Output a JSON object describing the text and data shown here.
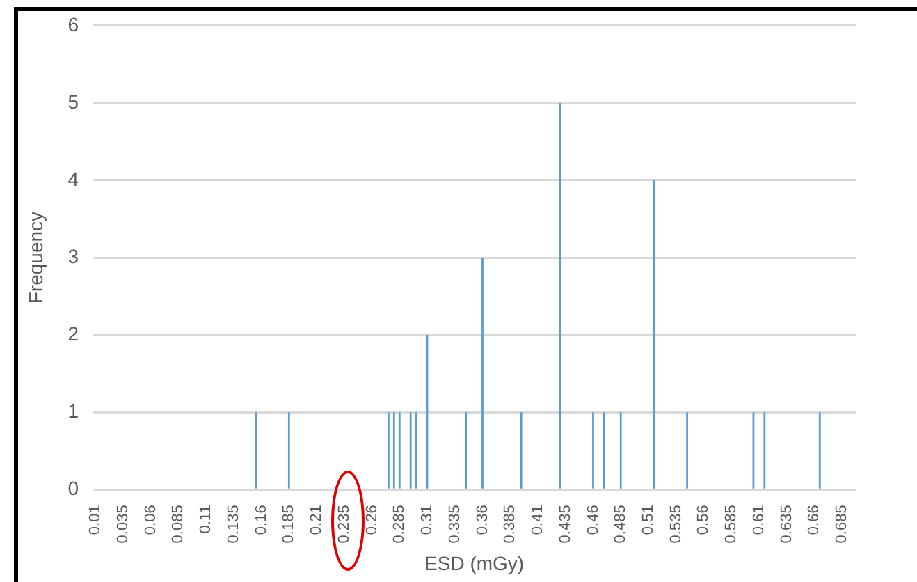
{
  "chart_data": {
    "type": "bar",
    "xlabel": "ESD (mGy)",
    "ylabel": "Frequency",
    "color": "#5b9bd5",
    "grid": "y",
    "ylim": [
      0,
      6
    ],
    "yticks": [
      0,
      1,
      2,
      3,
      4,
      5,
      6
    ],
    "categories": [
      "0.01",
      null,
      null,
      null,
      null,
      "0.035",
      null,
      null,
      null,
      null,
      "0.06",
      null,
      null,
      null,
      null,
      "0.085",
      null,
      null,
      null,
      null,
      "0.11",
      null,
      null,
      null,
      null,
      "0.135",
      null,
      null,
      null,
      null,
      "0.16",
      null,
      null,
      null,
      null,
      "0.185",
      null,
      null,
      null,
      null,
      "0.21",
      null,
      null,
      null,
      null,
      "0.235",
      null,
      null,
      null,
      null,
      "0.26",
      null,
      null,
      null,
      null,
      "0.285",
      null,
      null,
      null,
      null,
      "0.31",
      null,
      null,
      null,
      null,
      "0.335",
      null,
      null,
      null,
      null,
      "0.36",
      null,
      null,
      null,
      null,
      "0.385",
      null,
      null,
      null,
      null,
      "0.41",
      null,
      null,
      null,
      null,
      "0.435",
      null,
      null,
      null,
      null,
      "0.46",
      null,
      null,
      null,
      null,
      "0.485",
      null,
      null,
      null,
      null,
      "0.51",
      null,
      null,
      null,
      null,
      "0.535",
      null,
      null,
      null,
      null,
      "0.56",
      null,
      null,
      null,
      null,
      "0.585",
      null,
      null,
      null,
      null,
      "0.61",
      null,
      null,
      null,
      null,
      "0.635",
      null,
      null,
      null,
      null,
      "0.66",
      null,
      null,
      null,
      null,
      "0.685",
      null,
      null
    ],
    "values": [
      0,
      0,
      0,
      0,
      0,
      0,
      0,
      0,
      0,
      0,
      0,
      0,
      0,
      0,
      0,
      0,
      0,
      0,
      0,
      0,
      0,
      0,
      0,
      0,
      0,
      0,
      0,
      0,
      0,
      1,
      0,
      0,
      0,
      0,
      0,
      1,
      0,
      0,
      0,
      0,
      0,
      0,
      0,
      0,
      0,
      0,
      0,
      0,
      0,
      0,
      0,
      0,
      0,
      1,
      1,
      1,
      0,
      1,
      1,
      0,
      2,
      0,
      0,
      0,
      0,
      0,
      0,
      1,
      0,
      0,
      3,
      0,
      0,
      0,
      0,
      0,
      0,
      1,
      0,
      0,
      0,
      0,
      0,
      0,
      5,
      0,
      0,
      0,
      0,
      0,
      1,
      0,
      1,
      0,
      0,
      1,
      0,
      0,
      0,
      0,
      0,
      4,
      0,
      0,
      0,
      0,
      0,
      1,
      0,
      0,
      0,
      0,
      0,
      0,
      0,
      0,
      0,
      0,
      0,
      1,
      0,
      1,
      0,
      0,
      0,
      0,
      0,
      0,
      0,
      0,
      0,
      1,
      0,
      0,
      0,
      0,
      0,
      0
    ]
  }
}
